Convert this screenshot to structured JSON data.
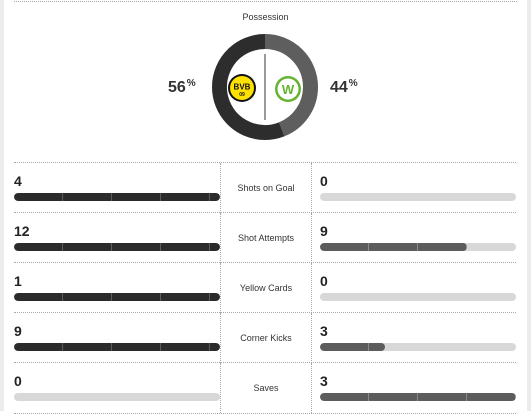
{
  "possession": {
    "title": "Possession",
    "home": {
      "value": "56",
      "unit": "%",
      "fraction": 0.56
    },
    "away": {
      "value": "44",
      "unit": "%",
      "fraction": 0.44
    }
  },
  "teams": {
    "home": {
      "logo_text": "BVB",
      "logo_sub": "09",
      "color": "#fde100"
    },
    "away": {
      "logo_text": "W",
      "color": "#65b32e"
    }
  },
  "colors": {
    "home_ring": "#2d2d2d",
    "away_ring": "#5e5e5e",
    "track": "#d8d8d8"
  },
  "stats": [
    {
      "label": "Shots on Goal",
      "home": "4",
      "away": "0",
      "home_fill": 1.0,
      "away_fill": 0.0
    },
    {
      "label": "Shot Attempts",
      "home": "12",
      "away": "9",
      "home_fill": 1.0,
      "away_fill": 0.75
    },
    {
      "label": "Yellow Cards",
      "home": "1",
      "away": "0",
      "home_fill": 1.0,
      "away_fill": 0.0
    },
    {
      "label": "Corner Kicks",
      "home": "9",
      "away": "3",
      "home_fill": 1.0,
      "away_fill": 0.33
    },
    {
      "label": "Saves",
      "home": "0",
      "away": "3",
      "home_fill": 0.0,
      "away_fill": 1.0
    }
  ]
}
